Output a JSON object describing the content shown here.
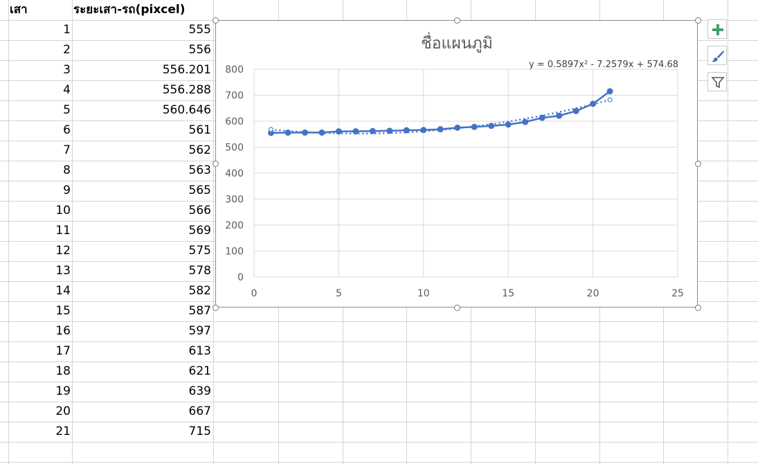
{
  "sheet": {
    "headers": {
      "col_a": "เสา",
      "col_b": "ระยะเสา-รถ(pixcel)"
    },
    "rows": [
      {
        "a": "1",
        "b": "555"
      },
      {
        "a": "2",
        "b": "556"
      },
      {
        "a": "3",
        "b": "556.201"
      },
      {
        "a": "4",
        "b": "556.288"
      },
      {
        "a": "5",
        "b": "560.646"
      },
      {
        "a": "6",
        "b": "561"
      },
      {
        "a": "7",
        "b": "562"
      },
      {
        "a": "8",
        "b": "563"
      },
      {
        "a": "9",
        "b": "565"
      },
      {
        "a": "10",
        "b": "566"
      },
      {
        "a": "11",
        "b": "569"
      },
      {
        "a": "12",
        "b": "575"
      },
      {
        "a": "13",
        "b": "578"
      },
      {
        "a": "14",
        "b": "582"
      },
      {
        "a": "15",
        "b": "587"
      },
      {
        "a": "16",
        "b": "597"
      },
      {
        "a": "17",
        "b": "613"
      },
      {
        "a": "18",
        "b": "621"
      },
      {
        "a": "19",
        "b": "639"
      },
      {
        "a": "20",
        "b": "667"
      },
      {
        "a": "21",
        "b": "715"
      }
    ]
  },
  "chart_data": {
    "type": "scatter",
    "title": "ชื่อแผนภูมิ",
    "trendline_label": "y = 0.5897x² - 7.2579x + 574.68",
    "trendline": {
      "type": "polynomial",
      "a": 0.5897,
      "b": -7.2579,
      "c": 574.68
    },
    "x": [
      1,
      2,
      3,
      4,
      5,
      6,
      7,
      8,
      9,
      10,
      11,
      12,
      13,
      14,
      15,
      16,
      17,
      18,
      19,
      20,
      21
    ],
    "series": [
      {
        "values": [
          555,
          556,
          556.201,
          556.288,
          560.646,
          561,
          562,
          563,
          565,
          566,
          569,
          575,
          578,
          582,
          587,
          597,
          613,
          621,
          639,
          667,
          715
        ]
      }
    ],
    "xlim": [
      0,
      25
    ],
    "ylim": [
      0,
      800
    ],
    "x_ticks": [
      "0",
      "5",
      "10",
      "15",
      "20",
      "25"
    ],
    "y_ticks": [
      "0",
      "100",
      "200",
      "300",
      "400",
      "500",
      "600",
      "700",
      "800"
    ],
    "grid": true,
    "series_color": "#4472c4",
    "gridline_color": "#d9d9d9"
  },
  "chart_tools": {
    "add_element_icon": "plus-icon",
    "style_icon": "brush-icon",
    "filter_icon": "filter-icon"
  }
}
